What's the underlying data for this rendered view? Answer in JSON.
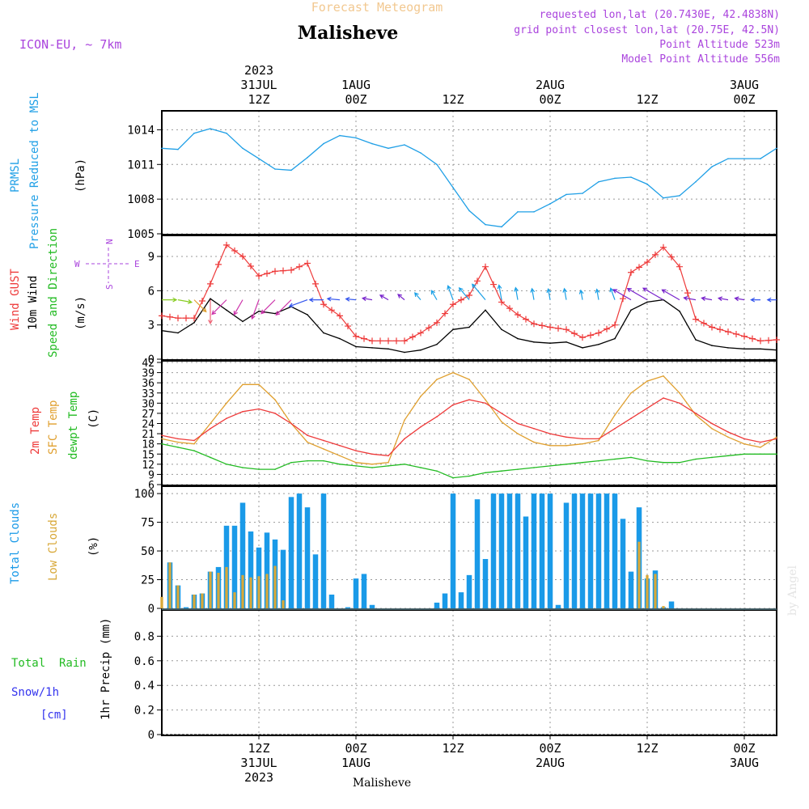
{
  "header": {
    "app_title": "Forecast Meteogram",
    "location": "Malisheve",
    "model": "ICON-EU, ~ 7km",
    "requested": "requested lon,lat (20.7430E, 42.4838N)",
    "gridpoint": "grid point closest lon,lat (20.75E, 42.5N)",
    "point_alt": "Point Altitude 523m",
    "model_alt": "Model Point Altitude 556m"
  },
  "footer": {
    "location": "Malisheve",
    "watermark": "by Angel"
  },
  "colors": {
    "pressure": "#1f9fe6",
    "gust": "#ee3a3a",
    "wind": "#000000",
    "dir_label": "#22bb22",
    "t2m": "#ee3a3a",
    "tsfc": "#e0a030",
    "dewpt": "#22bb22",
    "total_clouds": "#1a9ae8",
    "low_clouds": "#d8a838",
    "rain": "#22bb22",
    "snow": "#3333ee",
    "compass": "#aa44dd",
    "header_info": "#aa44dd"
  },
  "time_axis": {
    "top": [
      {
        "hour": 12,
        "lines": [
          "2023",
          "31JUL",
          "12Z"
        ]
      },
      {
        "hour": 24,
        "lines": [
          "1AUG",
          "00Z"
        ]
      },
      {
        "hour": 36,
        "lines": [
          "12Z"
        ]
      },
      {
        "hour": 48,
        "lines": [
          "2AUG",
          "00Z"
        ]
      },
      {
        "hour": 60,
        "lines": [
          "12Z"
        ]
      },
      {
        "hour": 72,
        "lines": [
          "3AUG",
          "00Z"
        ]
      }
    ],
    "bottom": [
      {
        "hour": 12,
        "lines": [
          "12Z",
          "31JUL",
          "2023"
        ]
      },
      {
        "hour": 24,
        "lines": [
          "00Z",
          "1AUG"
        ]
      },
      {
        "hour": 36,
        "lines": [
          "12Z"
        ]
      },
      {
        "hour": 48,
        "lines": [
          "00Z",
          "2AUG"
        ]
      },
      {
        "hour": 60,
        "lines": [
          "12Z"
        ]
      },
      {
        "hour": 72,
        "lines": [
          "00Z",
          "3AUG"
        ]
      }
    ]
  },
  "panels": {
    "pressure": {
      "label": "PRMSL",
      "sublabel": "Pressure Reduced to MSL",
      "unit": "(hPa)"
    },
    "wind": {
      "gust_label": "Wind GUST",
      "wind_label": "10m Wind",
      "dir_label": "Speed and Direction",
      "unit": "(m/s)",
      "compass": {
        "n": "N",
        "s": "S",
        "w": "W",
        "e": "E"
      }
    },
    "temp": {
      "t2m_label": "2m Temp",
      "tsfc_label": "SFC Temp",
      "dew_label": "dewpt Temp",
      "unit": "(C)"
    },
    "clouds": {
      "total_label": "Total Clouds",
      "low_label": "Low Clouds",
      "unit": "(%)"
    },
    "precip": {
      "rain_label": "Total  Rain",
      "snow_label": "Snow/1h",
      "snow_unit": "[cm]",
      "axis_label": "1hr Precip (mm)"
    }
  },
  "chart_data": [
    {
      "type": "line",
      "title": "PRMSL",
      "ylabel": "(hPa)",
      "ylim": [
        1005,
        1015.5
      ],
      "yticks": [
        1005,
        1008,
        1011,
        1014
      ],
      "x": [
        0,
        2,
        4,
        6,
        8,
        10,
        12,
        14,
        16,
        18,
        20,
        22,
        24,
        26,
        28,
        30,
        32,
        34,
        36,
        38,
        40,
        42,
        44,
        46,
        48,
        50,
        52,
        54,
        56,
        58,
        60,
        62,
        64,
        66,
        68,
        70,
        72,
        74,
        76
      ],
      "series": [
        {
          "name": "PRMSL",
          "values": [
            1012.4,
            1012.3,
            1013.7,
            1014.1,
            1013.7,
            1012.4,
            1011.5,
            1010.6,
            1010.5,
            1011.6,
            1012.8,
            1013.5,
            1013.3,
            1012.8,
            1012.4,
            1012.7,
            1012.0,
            1011.0,
            1009.0,
            1007.0,
            1005.8,
            1005.6,
            1006.9,
            1006.9,
            1007.6,
            1008.4,
            1008.5,
            1009.5,
            1009.8,
            1009.9,
            1009.3,
            1008.1,
            1008.3,
            1009.5,
            1010.8,
            1011.5,
            1011.5,
            1011.5,
            1012.4
          ]
        }
      ]
    },
    {
      "type": "line",
      "title": "Wind GUST / 10m Wind",
      "ylabel": "(m/s)",
      "ylim": [
        0,
        10.7
      ],
      "yticks": [
        0,
        3,
        6,
        9
      ],
      "x": [
        0,
        2,
        4,
        6,
        8,
        10,
        12,
        14,
        16,
        18,
        20,
        22,
        24,
        26,
        28,
        30,
        32,
        34,
        36,
        38,
        40,
        42,
        44,
        46,
        48,
        50,
        52,
        54,
        56,
        58,
        60,
        62,
        64,
        66,
        68,
        70,
        72,
        74,
        76
      ],
      "series": [
        {
          "name": "Wind GUST",
          "values": [
            3.8,
            3.6,
            3.6,
            6.6,
            10.0,
            9.0,
            7.3,
            7.7,
            7.8,
            8.4,
            4.8,
            3.8,
            2.0,
            1.6,
            1.6,
            1.6,
            2.3,
            3.2,
            4.8,
            5.6,
            8.1,
            5.0,
            3.9,
            3.1,
            2.8,
            2.6,
            1.9,
            2.3,
            3.0,
            7.6,
            8.5,
            9.8,
            8.1,
            3.5,
            2.8,
            2.4,
            2.0,
            1.6,
            1.7
          ]
        },
        {
          "name": "10m Wind",
          "values": [
            2.5,
            2.3,
            3.2,
            5.3,
            4.3,
            3.3,
            4.2,
            4.0,
            4.6,
            3.9,
            2.3,
            1.8,
            1.1,
            1.0,
            0.9,
            0.6,
            0.8,
            1.3,
            2.6,
            2.8,
            4.3,
            2.6,
            1.8,
            1.5,
            1.4,
            1.5,
            1.0,
            1.3,
            1.8,
            4.3,
            5.0,
            5.2,
            4.2,
            1.7,
            1.2,
            1.0,
            0.9,
            0.9,
            0.8
          ]
        }
      ],
      "arrows": {
        "x": [
          0,
          2,
          4,
          6,
          8,
          10,
          12,
          14,
          16,
          18,
          20,
          22,
          24,
          26,
          28,
          30,
          32,
          34,
          36,
          38,
          40,
          42,
          44,
          46,
          48,
          50,
          52,
          54,
          56,
          58,
          60,
          62,
          64,
          66,
          68,
          70,
          72,
          74,
          76
        ],
        "dir_to_deg": [
          90,
          100,
          135,
          180,
          225,
          210,
          200,
          225,
          225,
          250,
          270,
          275,
          275,
          280,
          300,
          310,
          320,
          330,
          340,
          320,
          320,
          350,
          350,
          350,
          350,
          350,
          350,
          350,
          340,
          300,
          300,
          300,
          300,
          280,
          280,
          280,
          280,
          270,
          270
        ]
      }
    },
    {
      "type": "line",
      "title": "2m Temp / SFC Temp / dewpt Temp",
      "ylabel": "(C)",
      "ylim": [
        6,
        42
      ],
      "yticks": [
        6,
        9,
        12,
        15,
        18,
        21,
        24,
        27,
        30,
        33,
        36,
        39,
        42
      ],
      "x": [
        0,
        2,
        4,
        6,
        8,
        10,
        12,
        14,
        16,
        18,
        20,
        22,
        24,
        26,
        28,
        30,
        32,
        34,
        36,
        38,
        40,
        42,
        44,
        46,
        48,
        50,
        52,
        54,
        56,
        58,
        60,
        62,
        64,
        66,
        68,
        70,
        72,
        74,
        76
      ],
      "series": [
        {
          "name": "2m Temp",
          "values": [
            20.5,
            19.5,
            19.0,
            22.5,
            25.5,
            27.5,
            28.3,
            27.0,
            24.0,
            20.5,
            19.0,
            17.5,
            16.0,
            15.0,
            14.5,
            19.5,
            23.0,
            26.0,
            29.5,
            31.0,
            30.0,
            27.0,
            24.0,
            22.5,
            21.0,
            20.0,
            19.5,
            19.5,
            22.5,
            25.5,
            28.5,
            31.5,
            30.0,
            27.0,
            24.0,
            21.5,
            19.5,
            18.5,
            19.5
          ]
        },
        {
          "name": "SFC Temp",
          "values": [
            19.5,
            18.5,
            18.0,
            24.0,
            30.0,
            35.5,
            35.5,
            31.0,
            24.0,
            18.5,
            16.5,
            14.5,
            12.5,
            12.0,
            12.5,
            25.0,
            32.0,
            37.0,
            39.0,
            37.0,
            31.0,
            24.5,
            21.0,
            18.5,
            17.5,
            17.5,
            18.0,
            19.0,
            26.5,
            33.0,
            36.5,
            38.0,
            33.0,
            26.5,
            22.5,
            20.0,
            18.0,
            17.0,
            20.0
          ]
        },
        {
          "name": "dewpt Temp",
          "values": [
            18.0,
            17.0,
            16.0,
            14.0,
            12.0,
            11.0,
            10.5,
            10.5,
            12.5,
            13.0,
            13.0,
            12.0,
            11.5,
            11.0,
            11.5,
            12.0,
            11.0,
            10.0,
            8.0,
            8.5,
            9.5,
            10.0,
            10.5,
            11.0,
            11.5,
            12.0,
            12.5,
            13.0,
            13.5,
            14.0,
            13.0,
            12.5,
            12.5,
            13.5,
            14.0,
            14.5,
            15.0,
            15.0,
            15.0
          ]
        }
      ]
    },
    {
      "type": "bar",
      "title": "Total Clouds / Low Clouds",
      "ylabel": "(%)",
      "ylim": [
        0,
        105
      ],
      "yticks": [
        0,
        25,
        50,
        75,
        100
      ],
      "x": [
        0,
        1,
        2,
        3,
        4,
        5,
        6,
        7,
        8,
        9,
        10,
        11,
        12,
        13,
        14,
        15,
        16,
        17,
        18,
        19,
        20,
        21,
        22,
        23,
        24,
        25,
        26,
        27,
        28,
        29,
        30,
        31,
        32,
        33,
        34,
        35,
        36,
        37,
        38,
        39,
        40,
        41,
        42,
        43,
        44,
        45,
        46,
        47,
        48,
        49,
        50,
        51,
        52,
        53,
        54,
        55,
        56,
        57,
        58,
        59,
        60,
        61,
        62,
        63,
        64,
        65,
        66,
        67,
        68,
        69,
        70,
        71,
        72,
        73,
        74,
        75,
        76
      ],
      "series": [
        {
          "name": "Total Clouds",
          "values": [
            0,
            40,
            20,
            1,
            12,
            13,
            32,
            36,
            72,
            72,
            92,
            67,
            53,
            66,
            60,
            51,
            97,
            100,
            88,
            47,
            100,
            12,
            0,
            1,
            26,
            30,
            3,
            0,
            0,
            0,
            0,
            0,
            0,
            0,
            5,
            13,
            100,
            14,
            29,
            95,
            43,
            100,
            100,
            100,
            100,
            80,
            100,
            100,
            100,
            3,
            92,
            100,
            100,
            100,
            100,
            100,
            100,
            78,
            32,
            88,
            26,
            33,
            1,
            6,
            0,
            0,
            0,
            0,
            0,
            0,
            0,
            0,
            0,
            0,
            0,
            0,
            0
          ]
        },
        {
          "name": "Low Clouds",
          "values": [
            10,
            40,
            20,
            0,
            12,
            13,
            32,
            31,
            36,
            14,
            29,
            27,
            28,
            30,
            37,
            7,
            0,
            0,
            0,
            0,
            0,
            0,
            0,
            0,
            0,
            0,
            0,
            0,
            0,
            0,
            0,
            0,
            0,
            0,
            0,
            0,
            0,
            0,
            0,
            0,
            0,
            0,
            0,
            0,
            0,
            0,
            0,
            0,
            0,
            0,
            0,
            0,
            0,
            0,
            0,
            0,
            0,
            0,
            0,
            58,
            29,
            30,
            2,
            0,
            0,
            0,
            0,
            0,
            0,
            0,
            0,
            0,
            0,
            0,
            0,
            0,
            0
          ]
        }
      ]
    },
    {
      "type": "bar",
      "title": "1hr Precip",
      "ylabel": "1hr Precip (mm)",
      "ylim": [
        0,
        1.0
      ],
      "yticks": [
        0,
        0.2,
        0.4,
        0.6,
        0.8
      ],
      "x": [
        0,
        76
      ],
      "series": [
        {
          "name": "Total Rain",
          "values": [
            0,
            0
          ]
        }
      ]
    }
  ]
}
